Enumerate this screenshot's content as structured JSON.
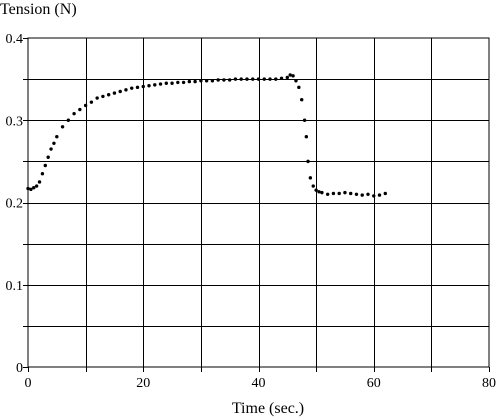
{
  "chart_data": {
    "type": "scatter",
    "title": "",
    "xlabel": "Time (sec.)",
    "ylabel": "Tension (N)",
    "xlim": [
      0,
      80
    ],
    "ylim": [
      0,
      0.4
    ],
    "x_ticks": [
      0,
      20,
      40,
      60,
      80
    ],
    "x_tick_labels": [
      "0",
      "20",
      "40",
      "60",
      "80"
    ],
    "y_ticks": [
      0,
      0.1,
      0.2,
      0.3,
      0.4
    ],
    "y_tick_labels": [
      "0",
      "0.1",
      "0.2",
      "0.3",
      "0.4"
    ],
    "x_grid_step": 10,
    "y_grid_step": 0.05,
    "grid": true,
    "legend": "none",
    "marker_color": "#000000",
    "series": [
      {
        "x": [
          0,
          0.5,
          1,
          1.5,
          2,
          2.5,
          3,
          3.5,
          4,
          4.5,
          5,
          6,
          7,
          8,
          9,
          10,
          11,
          12,
          13,
          14,
          15,
          16,
          17,
          18,
          19,
          20,
          21,
          22,
          23,
          24,
          25,
          26,
          27,
          28,
          29,
          30,
          31,
          32,
          33,
          34,
          35,
          36,
          37,
          38,
          39,
          40,
          41,
          42,
          43,
          44,
          45,
          45.5,
          46,
          46.5,
          47,
          47.5,
          48,
          48.3,
          48.6,
          49,
          49.5,
          50,
          50.5,
          51,
          52,
          53,
          54,
          55,
          56,
          57,
          58,
          59,
          60,
          61,
          62
        ],
        "y": [
          0.217,
          0.216,
          0.218,
          0.22,
          0.225,
          0.235,
          0.245,
          0.255,
          0.265,
          0.272,
          0.28,
          0.292,
          0.3,
          0.308,
          0.313,
          0.318,
          0.322,
          0.327,
          0.329,
          0.331,
          0.333,
          0.335,
          0.337,
          0.339,
          0.34,
          0.341,
          0.342,
          0.343,
          0.344,
          0.345,
          0.345,
          0.346,
          0.346,
          0.347,
          0.347,
          0.348,
          0.348,
          0.348,
          0.349,
          0.349,
          0.349,
          0.35,
          0.35,
          0.35,
          0.35,
          0.35,
          0.35,
          0.35,
          0.35,
          0.351,
          0.352,
          0.355,
          0.354,
          0.348,
          0.34,
          0.325,
          0.3,
          0.28,
          0.25,
          0.23,
          0.22,
          0.215,
          0.213,
          0.212,
          0.21,
          0.211,
          0.211,
          0.212,
          0.211,
          0.21,
          0.209,
          0.21,
          0.208,
          0.209,
          0.211
        ]
      }
    ]
  }
}
